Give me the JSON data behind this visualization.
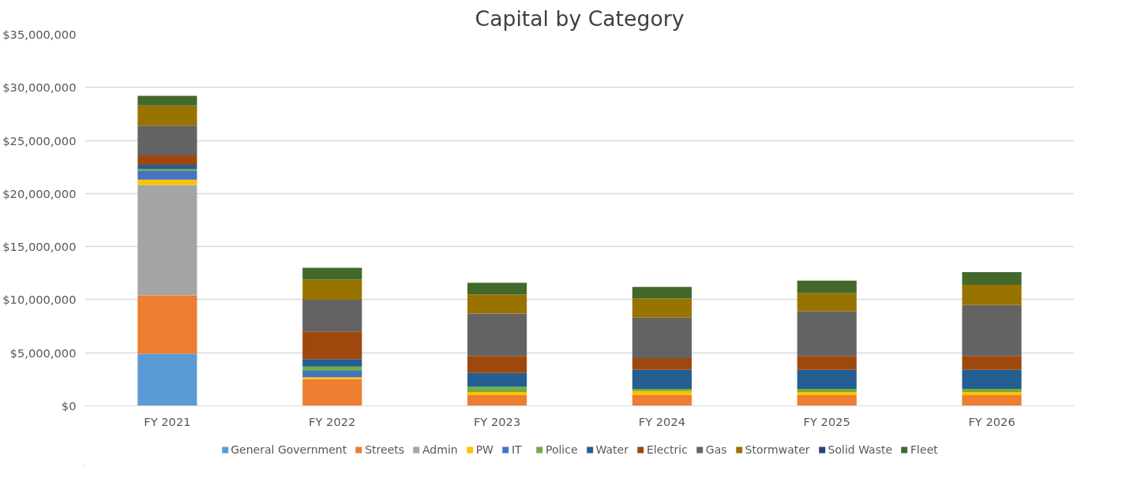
{
  "chart_data": {
    "type": "bar",
    "title": "Capital by Category",
    "stacked": true,
    "categories": [
      "FY 2021",
      "FY 2022",
      "FY 2023",
      "FY 2024",
      "FY 2025",
      "FY 2026"
    ],
    "series": [
      {
        "name": "General Government",
        "color": "#5b9bd5",
        "values": [
          4900000,
          0,
          0,
          0,
          0,
          0
        ]
      },
      {
        "name": "Streets",
        "color": "#ed7d31",
        "values": [
          5500000,
          2500000,
          1000000,
          1000000,
          1000000,
          1000000
        ]
      },
      {
        "name": "Admin",
        "color": "#a5a5a5",
        "values": [
          10400000,
          0,
          0,
          0,
          0,
          0
        ]
      },
      {
        "name": "PW",
        "color": "#ffc000",
        "values": [
          500000,
          200000,
          300000,
          400000,
          300000,
          300000
        ]
      },
      {
        "name": "IT",
        "color": "#4472c4",
        "values": [
          800000,
          600000,
          0,
          0,
          0,
          0
        ]
      },
      {
        "name": "Police",
        "color": "#70ad47",
        "values": [
          200000,
          400000,
          500000,
          200000,
          300000,
          300000
        ]
      },
      {
        "name": "Water",
        "color": "#255e91",
        "values": [
          400000,
          700000,
          1300000,
          1800000,
          1800000,
          1800000
        ]
      },
      {
        "name": "Electric",
        "color": "#9e480e",
        "values": [
          900000,
          2600000,
          1600000,
          1100000,
          1300000,
          1300000
        ]
      },
      {
        "name": "Gas",
        "color": "#636363",
        "values": [
          2800000,
          3000000,
          4000000,
          3800000,
          4200000,
          4800000
        ]
      },
      {
        "name": "Stormwater",
        "color": "#997300",
        "values": [
          1900000,
          1900000,
          1800000,
          1800000,
          1700000,
          1900000
        ]
      },
      {
        "name": "Solid Waste",
        "color": "#264478",
        "values": [
          0,
          0,
          0,
          0,
          0,
          0
        ]
      },
      {
        "name": "Fleet",
        "color": "#43682b",
        "values": [
          900000,
          1100000,
          1100000,
          1100000,
          1200000,
          1200000
        ]
      }
    ],
    "ylim": [
      0,
      35000000
    ],
    "yticks": [
      {
        "value": 0,
        "label": "$0"
      },
      {
        "value": 5000000,
        "label": "$5,000,000"
      },
      {
        "value": 10000000,
        "label": "$10,000,000"
      },
      {
        "value": 15000000,
        "label": "$15,000,000"
      },
      {
        "value": 20000000,
        "label": "$20,000,000"
      },
      {
        "value": 25000000,
        "label": "$25,000,000"
      },
      {
        "value": 30000000,
        "label": "$30,000,000"
      },
      {
        "value": 35000000,
        "label": "$35,000,000"
      }
    ],
    "grid": "y",
    "legend": "bottom"
  }
}
